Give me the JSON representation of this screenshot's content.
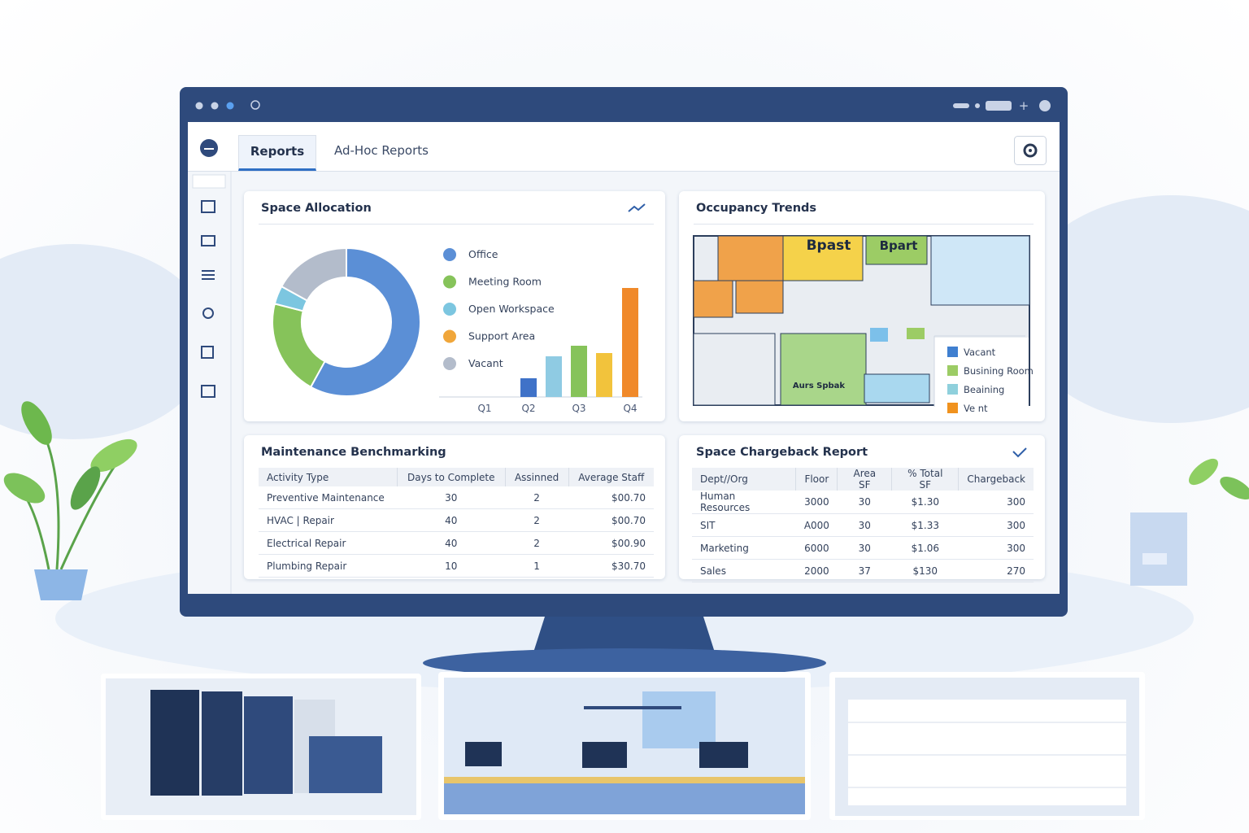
{
  "tabs": [
    "Reports",
    "Ad-Hoc Reports"
  ],
  "chart_data": [
    {
      "type": "pie",
      "title": "Space Allocation",
      "categories": [
        "Office",
        "Meeting Room",
        "Open Workspace",
        "Support Area",
        "Vacant"
      ],
      "values": [
        58,
        21,
        4,
        0,
        17
      ],
      "colors": [
        "#5b8fd6",
        "#86c35a",
        "#7cc6e0",
        "#f0a63a",
        "#b3bccb"
      ]
    },
    {
      "type": "bar",
      "categories": [
        "Q1",
        "Q2",
        null,
        "Q3",
        null,
        "Q4"
      ],
      "values": [
        null,
        23,
        50,
        63,
        54,
        134
      ],
      "colors": [
        "#3f72c8",
        "#3f72c8",
        "#8fcbe3",
        "#86c35a",
        "#f2c33c",
        "#f0892a"
      ],
      "ylim": [
        0,
        140
      ]
    }
  ],
  "occupancy": {
    "title": "Occupancy Trends",
    "plan_labels": [
      "Bpast",
      "Bpart",
      "Aurs Spbak"
    ],
    "legend": [
      {
        "name": "Vacant",
        "color": "#3f7fd0"
      },
      {
        "name": "Busining Room",
        "color": "#9ccc65"
      },
      {
        "name": "Beaining",
        "color": "#8fd0dc"
      },
      {
        "name": "Ve  nt",
        "color": "#f0921e"
      }
    ]
  },
  "maintenance": {
    "title": "Maintenance Benchmarking",
    "columns": [
      "Activity Type",
      "Days to Complete",
      "Assinned",
      "Average Staff"
    ],
    "rows": [
      [
        "Preventive Maintenance",
        "30",
        "2",
        "$00.70"
      ],
      [
        "HVAC | Repair",
        "40",
        "2",
        "$00.70"
      ],
      [
        "Electrical Repair",
        "40",
        "2",
        "$00.90"
      ],
      [
        "Plumbing Repair",
        "10",
        "1",
        "$30.70"
      ]
    ]
  },
  "chargeback": {
    "title": "Space Chargeback Report",
    "columns": [
      "Dept//Org",
      "Floor",
      "Area SF",
      "% Total SF",
      "Chargeback"
    ],
    "rows": [
      [
        "Human Resources",
        "3000",
        "30",
        "$1.30",
        "300"
      ],
      [
        "SIT",
        "A000",
        "30",
        "$1.33",
        "300"
      ],
      [
        "Marketing",
        "6000",
        "30",
        "$1.06",
        "300"
      ],
      [
        "Sales",
        "2000",
        "37",
        "$130",
        "270"
      ]
    ]
  }
}
